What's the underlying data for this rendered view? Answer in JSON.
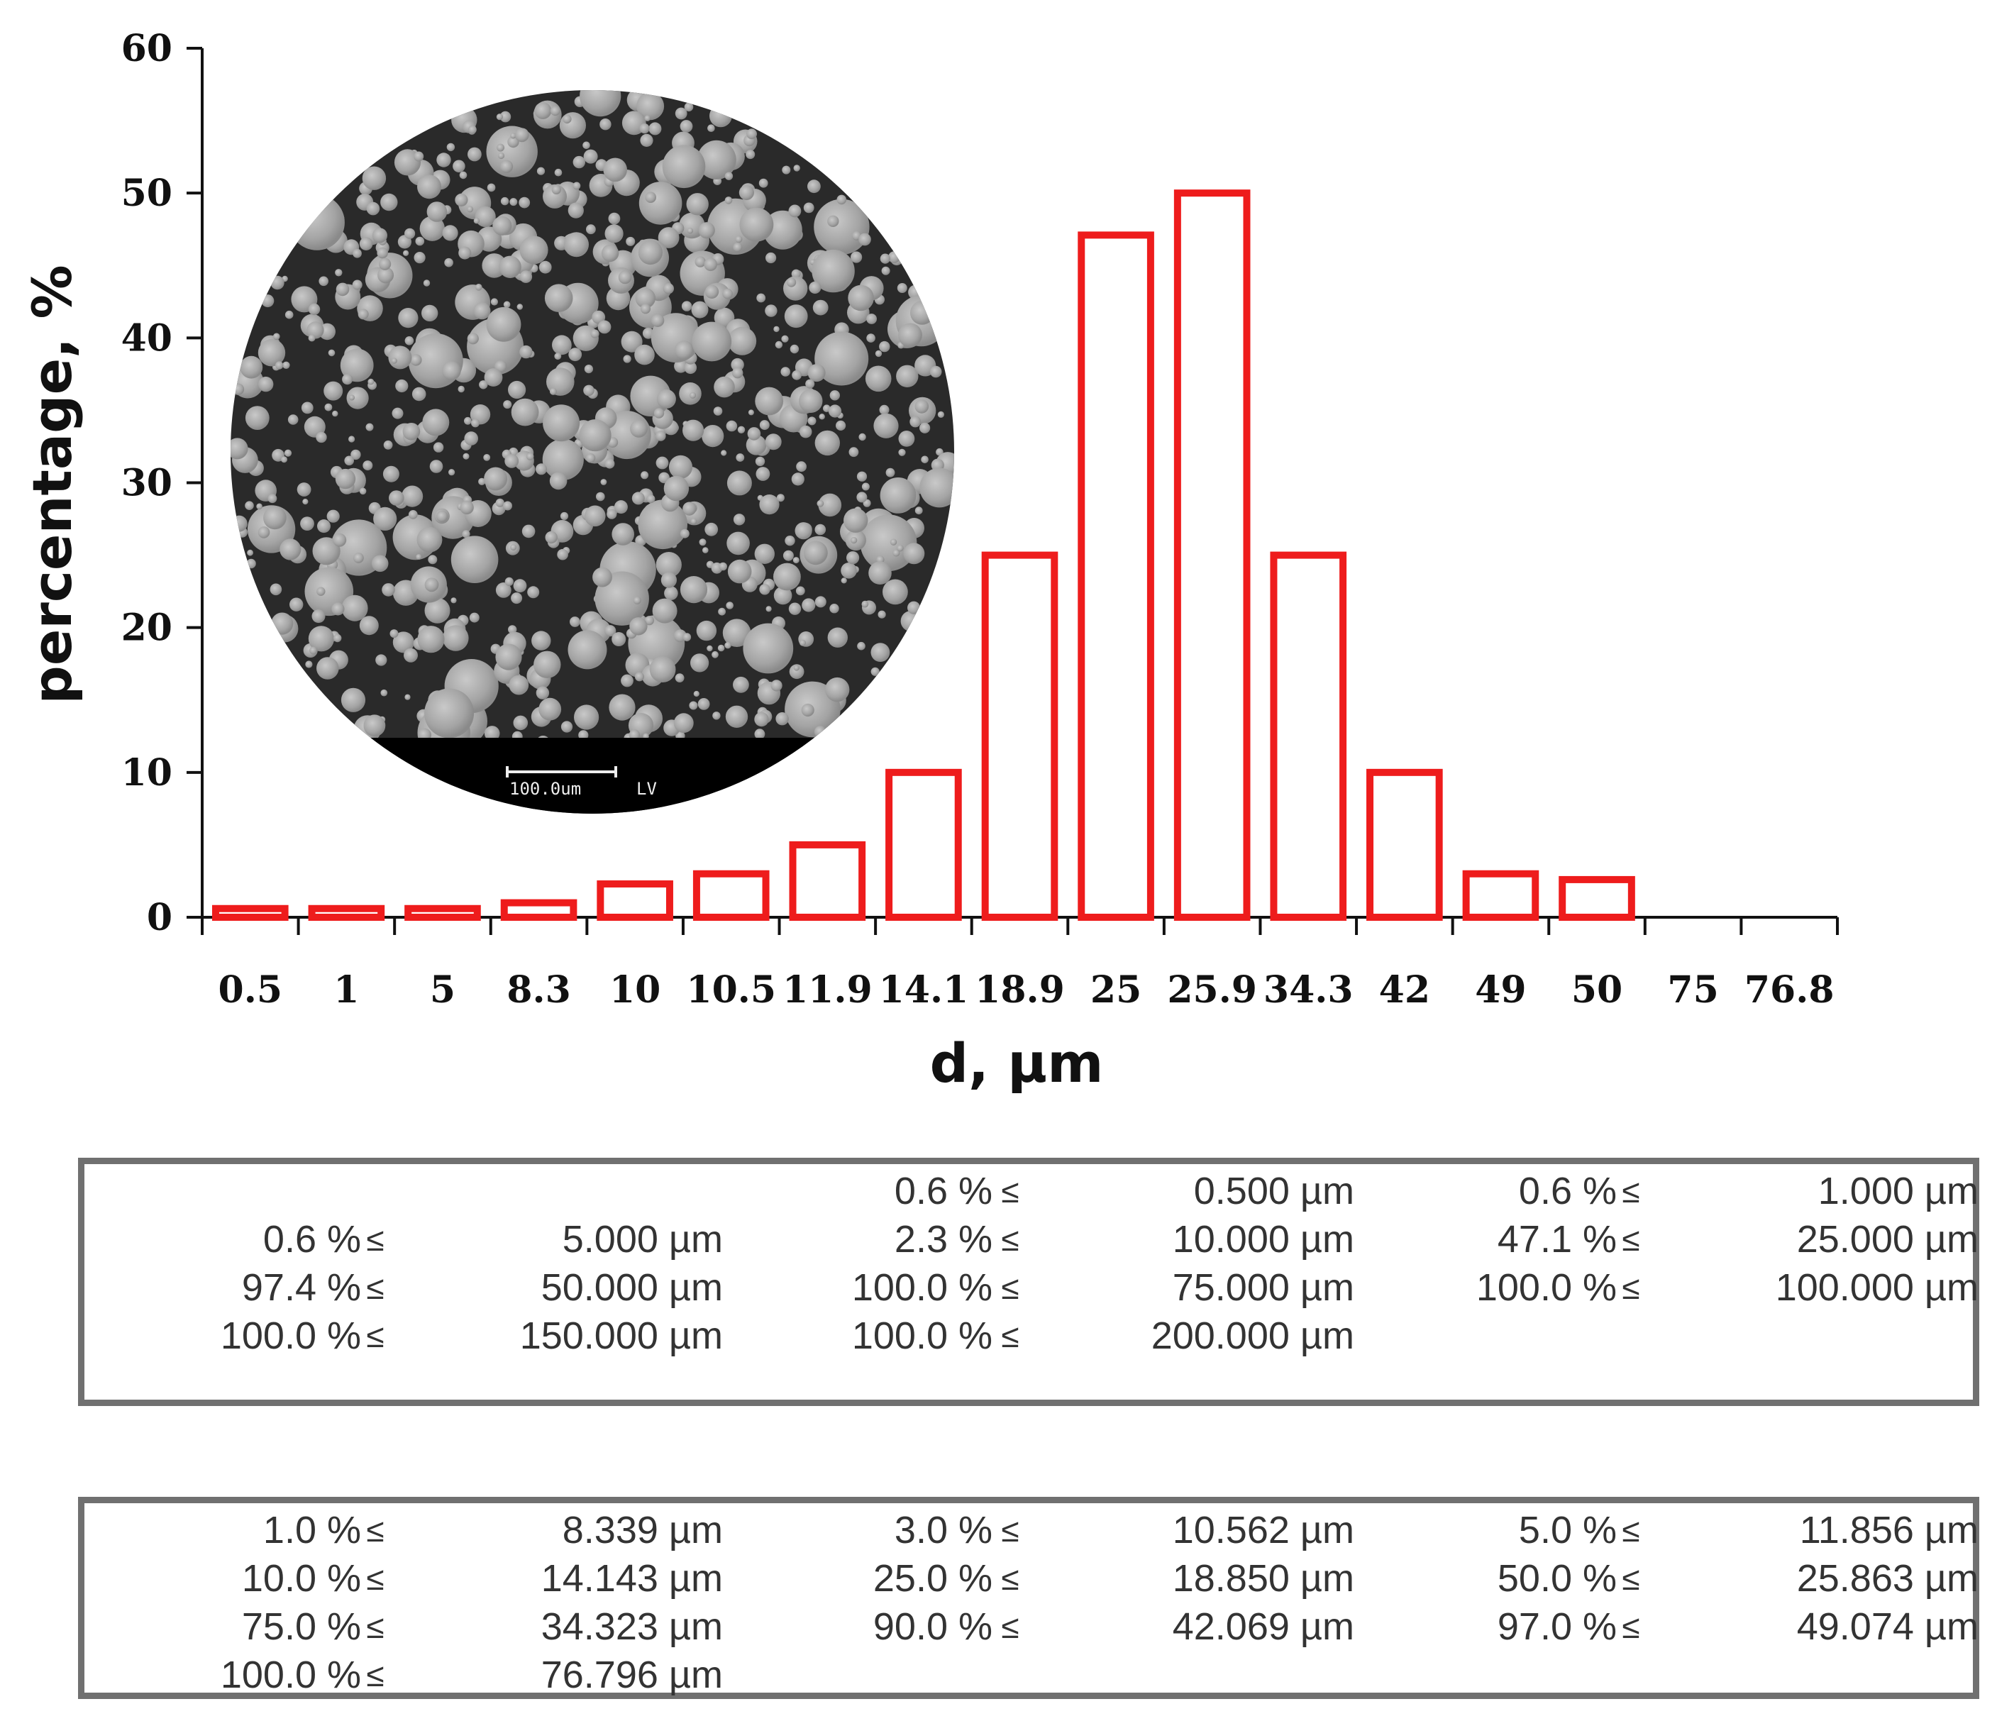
{
  "chart_data": {
    "type": "bar",
    "xlabel": "d, µm",
    "ylabel": "percentage, %",
    "ylim": [
      0,
      60
    ],
    "yticks": [
      "0",
      "10",
      "20",
      "30",
      "40",
      "50",
      "60"
    ],
    "categories": [
      "0.5",
      "1",
      "5",
      "8.3",
      "10",
      "10.5",
      "11.9",
      "14.1",
      "18.9",
      "25",
      "25.9",
      "34.3",
      "42",
      "49",
      "50",
      "75",
      "76.8"
    ],
    "values": [
      0.6,
      0.6,
      0.6,
      1.0,
      2.3,
      3.0,
      5.0,
      10.0,
      25.0,
      47.1,
      50.0,
      25.0,
      10.0,
      3.0,
      2.6,
      0,
      0
    ],
    "bar_color": "#ee1c1c",
    "grid": false,
    "legend": "none",
    "inset": {
      "scale_label": "100.0um",
      "mode_label": "LV"
    }
  },
  "tables": [
    {
      "rows": [
        [
          {
            "p": "",
            "op": "",
            "s": ""
          },
          {
            "p": "0.6 %",
            "op": "≤",
            "s": "0.500 µm"
          },
          {
            "p": "0.6 %",
            "op": "≤",
            "s": "1.000 µm"
          }
        ],
        [
          {
            "p": "0.6 %",
            "op": "≤",
            "s": "5.000 µm"
          },
          {
            "p": "2.3 %",
            "op": "≤",
            "s": "10.000 µm"
          },
          {
            "p": "47.1 %",
            "op": "≤",
            "s": "25.000 µm"
          }
        ],
        [
          {
            "p": "97.4 %",
            "op": "≤",
            "s": "50.000 µm"
          },
          {
            "p": "100.0 %",
            "op": "≤",
            "s": "75.000 µm"
          },
          {
            "p": "100.0 %",
            "op": "≤",
            "s": "100.000 µm"
          }
        ],
        [
          {
            "p": "100.0 %",
            "op": "≤",
            "s": "150.000 µm"
          },
          {
            "p": "100.0 %",
            "op": "≤",
            "s": "200.000 µm"
          },
          {
            "p": "",
            "op": "",
            "s": ""
          }
        ]
      ]
    },
    {
      "rows": [
        [
          {
            "p": "1.0 %",
            "op": "≤",
            "s": "8.339 µm"
          },
          {
            "p": "3.0 %",
            "op": "≤",
            "s": "10.562 µm"
          },
          {
            "p": "5.0 %",
            "op": "≤",
            "s": "11.856 µm"
          }
        ],
        [
          {
            "p": "10.0 %",
            "op": "≤",
            "s": "14.143 µm"
          },
          {
            "p": "25.0 %",
            "op": "≤",
            "s": "18.850 µm"
          },
          {
            "p": "50.0 %",
            "op": "≤",
            "s": "25.863 µm"
          }
        ],
        [
          {
            "p": "75.0 %",
            "op": "≤",
            "s": "34.323 µm"
          },
          {
            "p": "90.0 %",
            "op": "≤",
            "s": "42.069 µm"
          },
          {
            "p": "97.0 %",
            "op": "≤",
            "s": "49.074 µm"
          }
        ],
        [
          {
            "p": "100.0 %",
            "op": "≤",
            "s": "76.796 µm"
          },
          {
            "p": "",
            "op": "",
            "s": ""
          },
          {
            "p": "",
            "op": "",
            "s": ""
          }
        ]
      ]
    }
  ]
}
